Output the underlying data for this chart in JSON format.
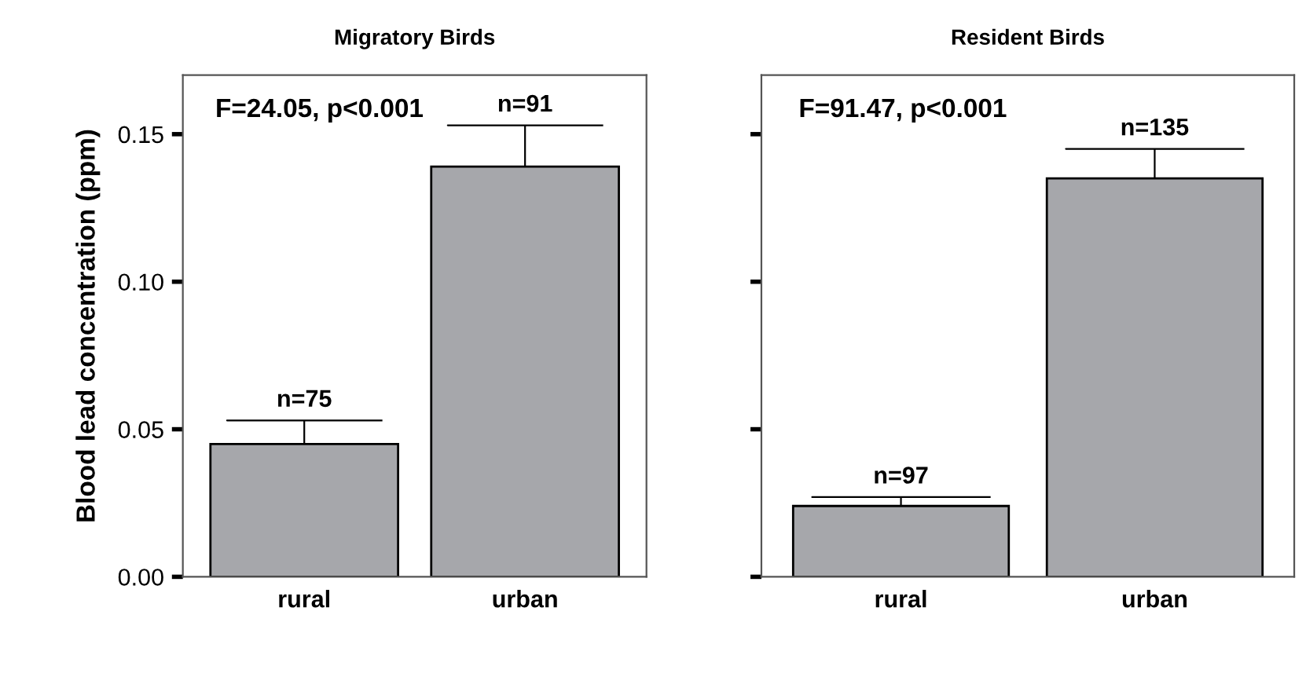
{
  "chart_data": [
    {
      "type": "bar",
      "title": "Migratory Birds",
      "ylabel": "Blood lead concentration (ppm)",
      "categories": [
        "rural",
        "urban"
      ],
      "values": [
        0.045,
        0.139
      ],
      "errors": [
        [
          0.045,
          0.053
        ],
        [
          0.139,
          0.153
        ]
      ],
      "color": "#a6a7ab",
      "ylim": [
        0,
        0.17
      ],
      "yticks": [
        {
          "value": 0,
          "label": "0.00"
        },
        {
          "value": 0.05,
          "label": "0.05"
        },
        {
          "value": 0.1,
          "label": "0.10"
        },
        {
          "value": 0.15,
          "label": "0.15"
        }
      ],
      "grid": false,
      "annotations": [
        "F=24.05, p<0.001",
        "n=75",
        "n=91"
      ]
    },
    {
      "type": "bar",
      "title": "Resident Birds",
      "categories": [
        "rural",
        "urban"
      ],
      "values": [
        0.024,
        0.135
      ],
      "errors": [
        [
          0.024,
          0.027
        ],
        [
          0.135,
          0.145
        ]
      ],
      "color": "#a6a7ab",
      "ylim": [
        0,
        0.17
      ],
      "yticks": [
        0,
        0.05,
        0.1,
        0.15
      ],
      "tick_labels": "x",
      "grid": false,
      "annotations": [
        "F=91.47, p<0.001",
        "n=97",
        "n=135"
      ]
    }
  ]
}
